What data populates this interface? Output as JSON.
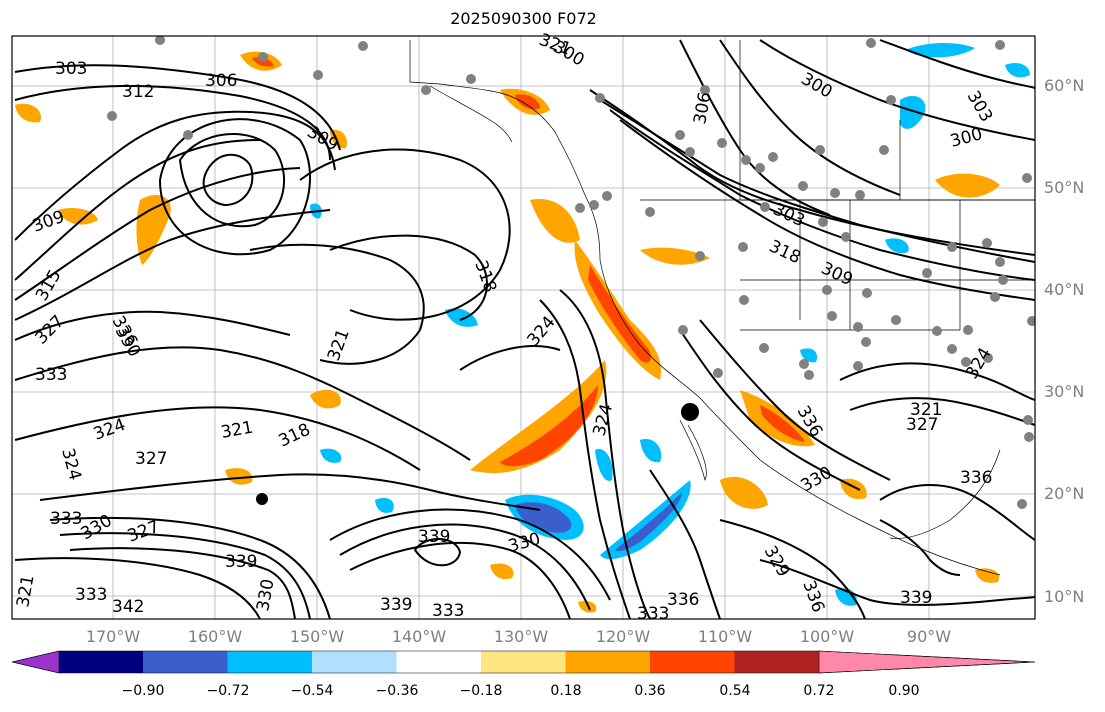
{
  "title": "2025090300 F072",
  "lat_labels": [
    "60°N",
    "50°N",
    "40°N",
    "30°N",
    "20°N",
    "10°N"
  ],
  "lon_labels": [
    "170°W",
    "160°W",
    "150°W",
    "140°W",
    "130°W",
    "120°W",
    "110°W",
    "100°W",
    "90°W"
  ],
  "contour_labels": [
    "303",
    "306",
    "312",
    "309",
    "300",
    "303",
    "306",
    "300",
    "300",
    "321",
    "309",
    "303",
    "309",
    "318",
    "315",
    "318",
    "327",
    "336",
    "321",
    "324",
    "330",
    "333",
    "324",
    "324",
    "327",
    "318",
    "321",
    "327",
    "324",
    "336",
    "321",
    "324",
    "330",
    "333",
    "330",
    "339",
    "339",
    "333",
    "330",
    "327",
    "342",
    "336",
    "339",
    "329",
    "333",
    "336",
    "336",
    "339",
    "330",
    "321",
    "333"
  ],
  "colorbar": {
    "tick_labels": [
      "−0.90",
      "−0.72",
      "−0.54",
      "−0.36",
      "−0.18",
      "0.18",
      "0.36",
      "0.54",
      "0.72",
      "0.90"
    ],
    "colors": [
      "#9933cc",
      "#000080",
      "#3a5fcd",
      "#00bfff",
      "#b0e0ff",
      "#ffffff",
      "#ffe680",
      "#ffa500",
      "#ff4500",
      "#b22222",
      "#ff88aa"
    ]
  }
}
